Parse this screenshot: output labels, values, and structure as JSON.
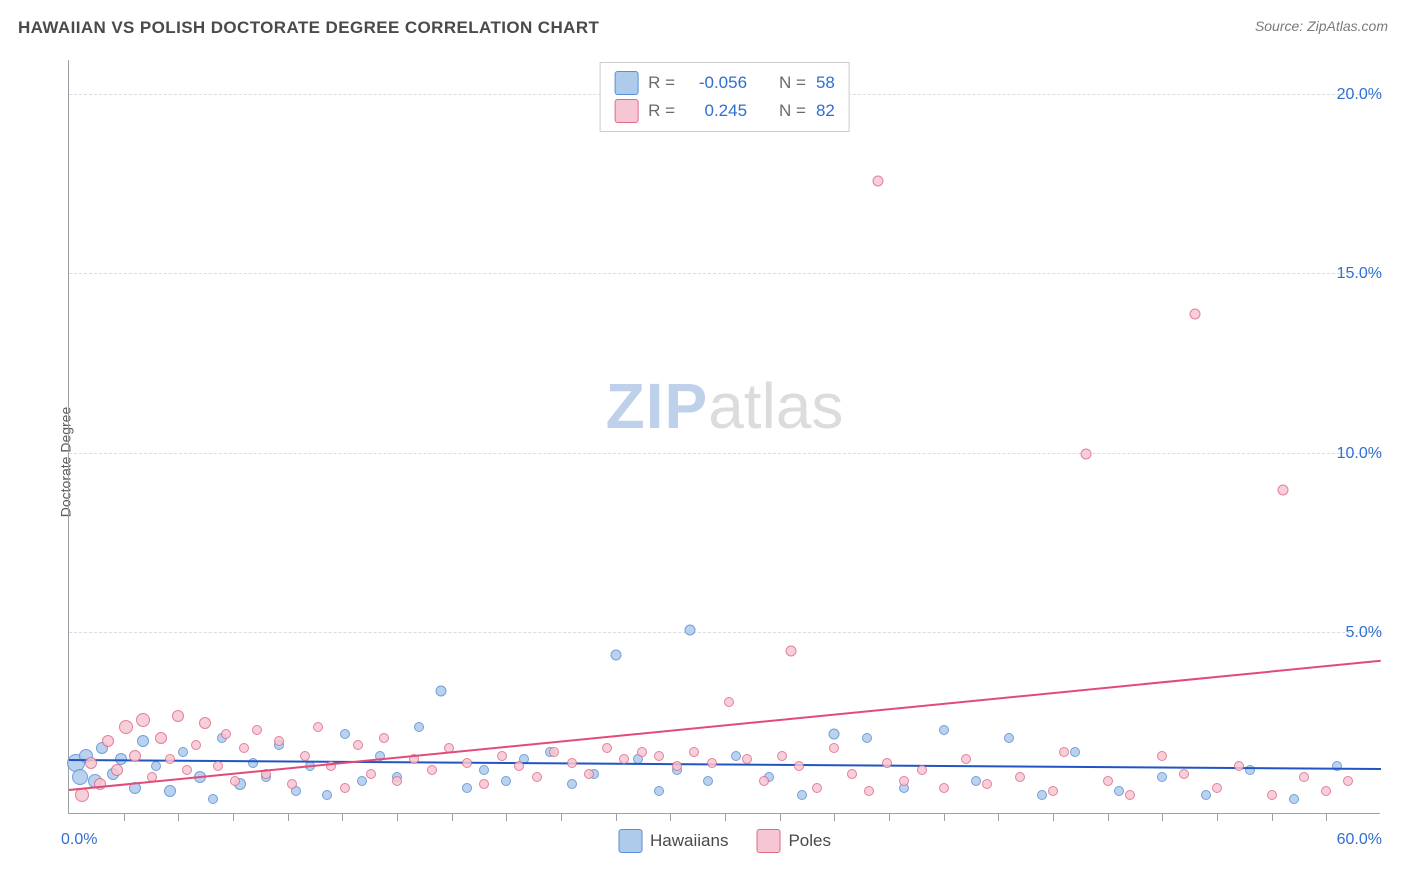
{
  "title": "HAWAIIAN VS POLISH DOCTORATE DEGREE CORRELATION CHART",
  "source": "Source: ZipAtlas.com",
  "ylabel": "Doctorate Degree",
  "watermark": {
    "zip": "ZIP",
    "atlas": "atlas"
  },
  "xlim": [
    0,
    60
  ],
  "ylim": [
    0,
    21
  ],
  "yticks": [
    {
      "v": 5,
      "label": "5.0%"
    },
    {
      "v": 10,
      "label": "10.0%"
    },
    {
      "v": 15,
      "label": "15.0%"
    },
    {
      "v": 20,
      "label": "20.0%"
    }
  ],
  "xticks": [
    2.5,
    5,
    7.5,
    10,
    12.5,
    15,
    17.5,
    20,
    22.5,
    25,
    27.5,
    30,
    32.5,
    35,
    37.5,
    40,
    42.5,
    45,
    47.5,
    50,
    52.5,
    55,
    57.5
  ],
  "xaxis_labels": {
    "left": "0.0%",
    "right": "60.0%"
  },
  "series": [
    {
      "name": "Hawaiians",
      "fill": "#aecbeb",
      "stroke": "#5a8fd6",
      "line_color": "#2255c4",
      "r": -0.056,
      "n": 58,
      "trend": {
        "x1": 0,
        "y1": 1.45,
        "x2": 60,
        "y2": 1.2
      },
      "points": [
        [
          0.3,
          1.4,
          18
        ],
        [
          0.5,
          1.0,
          16
        ],
        [
          0.8,
          1.6,
          14
        ],
        [
          1.2,
          0.9,
          14
        ],
        [
          1.5,
          1.8,
          12
        ],
        [
          2.0,
          1.1,
          12
        ],
        [
          2.4,
          1.5,
          12
        ],
        [
          3.0,
          0.7,
          12
        ],
        [
          3.4,
          2.0,
          12
        ],
        [
          4.0,
          1.3,
          10
        ],
        [
          4.6,
          0.6,
          12
        ],
        [
          5.2,
          1.7,
          10
        ],
        [
          6.0,
          1.0,
          12
        ],
        [
          6.6,
          0.4,
          10
        ],
        [
          7.0,
          2.1,
          10
        ],
        [
          7.8,
          0.8,
          12
        ],
        [
          8.4,
          1.4,
          10
        ],
        [
          9.0,
          1.0,
          10
        ],
        [
          9.6,
          1.9,
          10
        ],
        [
          10.4,
          0.6,
          10
        ],
        [
          11.0,
          1.3,
          10
        ],
        [
          11.8,
          0.5,
          10
        ],
        [
          12.6,
          2.2,
          10
        ],
        [
          13.4,
          0.9,
          10
        ],
        [
          14.2,
          1.6,
          10
        ],
        [
          15.0,
          1.0,
          10
        ],
        [
          16.0,
          2.4,
          10
        ],
        [
          17.0,
          3.4,
          11
        ],
        [
          18.2,
          0.7,
          10
        ],
        [
          19.0,
          1.2,
          10
        ],
        [
          20.0,
          0.9,
          10
        ],
        [
          20.8,
          1.5,
          10
        ],
        [
          22.0,
          1.7,
          10
        ],
        [
          23.0,
          0.8,
          10
        ],
        [
          24.0,
          1.1,
          10
        ],
        [
          25.0,
          4.4,
          11
        ],
        [
          26.0,
          1.5,
          10
        ],
        [
          27.0,
          0.6,
          10
        ],
        [
          27.8,
          1.2,
          10
        ],
        [
          28.4,
          5.1,
          11
        ],
        [
          29.2,
          0.9,
          10
        ],
        [
          30.5,
          1.6,
          10
        ],
        [
          32.0,
          1.0,
          10
        ],
        [
          33.5,
          0.5,
          10
        ],
        [
          35.0,
          2.2,
          11
        ],
        [
          36.5,
          2.1,
          10
        ],
        [
          38.2,
          0.7,
          10
        ],
        [
          40.0,
          2.3,
          10
        ],
        [
          41.5,
          0.9,
          10
        ],
        [
          43.0,
          2.1,
          10
        ],
        [
          44.5,
          0.5,
          10
        ],
        [
          46.0,
          1.7,
          10
        ],
        [
          48.0,
          0.6,
          10
        ],
        [
          50.0,
          1.0,
          10
        ],
        [
          52.0,
          0.5,
          10
        ],
        [
          54.0,
          1.2,
          10
        ],
        [
          56.0,
          0.4,
          10
        ],
        [
          58.0,
          1.3,
          10
        ]
      ]
    },
    {
      "name": "Poles",
      "fill": "#f6c7d2",
      "stroke": "#e06a8a",
      "line_color": "#e24b77",
      "r": 0.245,
      "n": 82,
      "trend": {
        "x1": 0,
        "y1": 0.6,
        "x2": 60,
        "y2": 4.2
      },
      "points": [
        [
          0.6,
          0.5,
          14
        ],
        [
          1.0,
          1.4,
          12
        ],
        [
          1.4,
          0.8,
          12
        ],
        [
          1.8,
          2.0,
          12
        ],
        [
          2.2,
          1.2,
          12
        ],
        [
          2.6,
          2.4,
          14
        ],
        [
          3.0,
          1.6,
          12
        ],
        [
          3.4,
          2.6,
          14
        ],
        [
          3.8,
          1.0,
          10
        ],
        [
          4.2,
          2.1,
          12
        ],
        [
          4.6,
          1.5,
          10
        ],
        [
          5.0,
          2.7,
          12
        ],
        [
          5.4,
          1.2,
          10
        ],
        [
          5.8,
          1.9,
          10
        ],
        [
          6.2,
          2.5,
          12
        ],
        [
          6.8,
          1.3,
          10
        ],
        [
          7.2,
          2.2,
          10
        ],
        [
          7.6,
          0.9,
          10
        ],
        [
          8.0,
          1.8,
          10
        ],
        [
          8.6,
          2.3,
          10
        ],
        [
          9.0,
          1.1,
          10
        ],
        [
          9.6,
          2.0,
          10
        ],
        [
          10.2,
          0.8,
          10
        ],
        [
          10.8,
          1.6,
          10
        ],
        [
          11.4,
          2.4,
          10
        ],
        [
          12.0,
          1.3,
          10
        ],
        [
          12.6,
          0.7,
          10
        ],
        [
          13.2,
          1.9,
          10
        ],
        [
          13.8,
          1.1,
          10
        ],
        [
          14.4,
          2.1,
          10
        ],
        [
          15.0,
          0.9,
          10
        ],
        [
          15.8,
          1.5,
          10
        ],
        [
          16.6,
          1.2,
          10
        ],
        [
          17.4,
          1.8,
          10
        ],
        [
          18.2,
          1.4,
          10
        ],
        [
          19.0,
          0.8,
          10
        ],
        [
          19.8,
          1.6,
          10
        ],
        [
          20.6,
          1.3,
          10
        ],
        [
          21.4,
          1.0,
          10
        ],
        [
          22.2,
          1.7,
          10
        ],
        [
          23.0,
          1.4,
          10
        ],
        [
          23.8,
          1.1,
          10
        ],
        [
          24.6,
          1.8,
          10
        ],
        [
          25.4,
          1.5,
          10
        ],
        [
          26.2,
          1.7,
          10
        ],
        [
          27.0,
          1.6,
          10
        ],
        [
          27.8,
          1.3,
          10
        ],
        [
          28.6,
          1.7,
          10
        ],
        [
          29.4,
          1.4,
          10
        ],
        [
          30.2,
          3.1,
          10
        ],
        [
          31.0,
          1.5,
          10
        ],
        [
          31.8,
          0.9,
          10
        ],
        [
          32.6,
          1.6,
          10
        ],
        [
          33.0,
          4.5,
          11
        ],
        [
          33.4,
          1.3,
          10
        ],
        [
          34.2,
          0.7,
          10
        ],
        [
          35.0,
          1.8,
          10
        ],
        [
          35.8,
          1.1,
          10
        ],
        [
          36.6,
          0.6,
          10
        ],
        [
          37.0,
          17.6,
          11
        ],
        [
          37.4,
          1.4,
          10
        ],
        [
          38.2,
          0.9,
          10
        ],
        [
          39.0,
          1.2,
          10
        ],
        [
          40.0,
          0.7,
          10
        ],
        [
          41.0,
          1.5,
          10
        ],
        [
          42.0,
          0.8,
          10
        ],
        [
          43.5,
          1.0,
          10
        ],
        [
          45.0,
          0.6,
          10
        ],
        [
          45.5,
          1.7,
          10
        ],
        [
          46.5,
          10.0,
          11
        ],
        [
          47.5,
          0.9,
          10
        ],
        [
          48.5,
          0.5,
          10
        ],
        [
          50.0,
          1.6,
          10
        ],
        [
          51.0,
          1.1,
          10
        ],
        [
          51.5,
          13.9,
          11
        ],
        [
          52.5,
          0.7,
          10
        ],
        [
          53.5,
          1.3,
          10
        ],
        [
          55.0,
          0.5,
          10
        ],
        [
          55.5,
          9.0,
          11
        ],
        [
          56.5,
          1.0,
          10
        ],
        [
          57.5,
          0.6,
          10
        ],
        [
          58.5,
          0.9,
          10
        ]
      ]
    }
  ],
  "legend_top_labels": {
    "R": "R =",
    "N": "N ="
  },
  "marker_border_width": 1.5,
  "grid_color": "#d9dce0",
  "axis_color": "#9aa0a6"
}
